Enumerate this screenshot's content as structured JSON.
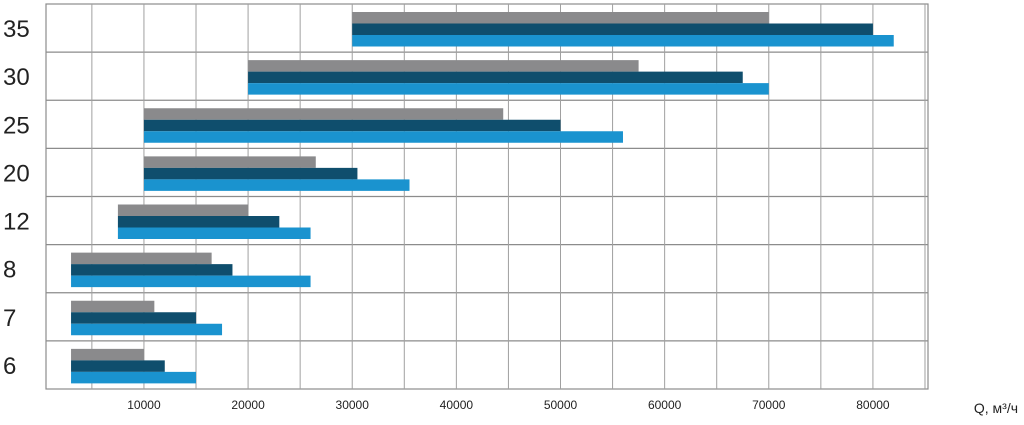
{
  "chart_data": {
    "type": "bar",
    "orientation": "horizontal",
    "bar_style": "floating-range",
    "categories": [
      "35",
      "30",
      "25",
      "20",
      "12",
      "8",
      "7",
      "6"
    ],
    "series": [
      {
        "color": "#8a8a8c",
        "ranges": [
          [
            30000,
            70000
          ],
          [
            20000,
            57500
          ],
          [
            10000,
            44500
          ],
          [
            10000,
            26500
          ],
          [
            7500,
            20000
          ],
          [
            3000,
            16500
          ],
          [
            3000,
            11000
          ],
          [
            3000,
            10000
          ]
        ]
      },
      {
        "color": "#0f4e6d",
        "ranges": [
          [
            30000,
            80000
          ],
          [
            20000,
            67500
          ],
          [
            10000,
            50000
          ],
          [
            10000,
            30500
          ],
          [
            7500,
            23000
          ],
          [
            3000,
            18500
          ],
          [
            3000,
            15000
          ],
          [
            3000,
            12000
          ]
        ]
      },
      {
        "color": "#1a93cf",
        "ranges": [
          [
            30000,
            82000
          ],
          [
            20000,
            70000
          ],
          [
            10000,
            56000
          ],
          [
            10000,
            35500
          ],
          [
            7500,
            26000
          ],
          [
            3000,
            26000
          ],
          [
            3000,
            17500
          ],
          [
            3000,
            15000
          ]
        ]
      }
    ],
    "x_ticks": [
      "10000",
      "20000",
      "30000",
      "40000",
      "50000",
      "60000",
      "70000",
      "80000"
    ],
    "xlabel": "Q, м³/ч",
    "ylabel": "",
    "xlim": [
      0,
      90000
    ],
    "grid": true,
    "legend": "none"
  }
}
